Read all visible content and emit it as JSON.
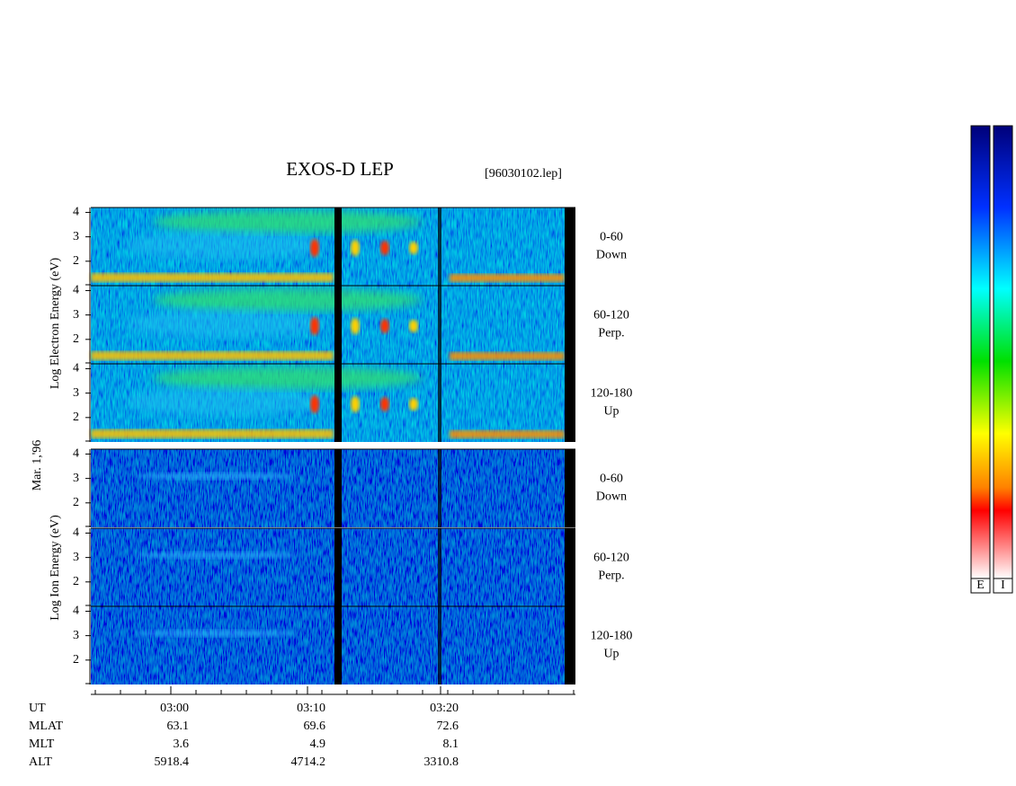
{
  "title": "EXOS-D LEP",
  "file": "[96030102.lep]",
  "electron_label": "Log Electron Energy (eV)",
  "ion_label": "Log Ion Energy (eV)",
  "date": "Mar. 1,'96",
  "panels": [
    {
      "range": "0-60",
      "direction": "Down",
      "ylim": [
        1,
        4.2
      ],
      "yticks": [
        2,
        3,
        4
      ]
    },
    {
      "range": "60-120",
      "direction": "Perp.",
      "ylim": [
        1,
        4.2
      ],
      "yticks": [
        2,
        3,
        4
      ]
    },
    {
      "range": "120-180",
      "direction": "Up",
      "ylim": [
        1,
        4.2
      ],
      "yticks": [
        2,
        3,
        4
      ]
    },
    {
      "range": "0-60",
      "direction": "Down",
      "ylim": [
        1,
        4.2
      ],
      "yticks": [
        2,
        3,
        4
      ]
    },
    {
      "range": "60-120",
      "direction": "Perp.",
      "ylim": [
        1,
        4.2
      ],
      "yticks": [
        2,
        3,
        4
      ]
    },
    {
      "range": "120-180",
      "direction": "Up",
      "ylim": [
        1,
        4.2
      ],
      "yticks": [
        2,
        3,
        4
      ]
    }
  ],
  "ephemeris": {
    "rows": [
      {
        "name": "UT",
        "values": [
          "03:00",
          "03:10",
          "03:20"
        ]
      },
      {
        "name": "MLAT",
        "values": [
          63.1,
          69.6,
          72.6
        ]
      },
      {
        "name": "MLT",
        "values": [
          3.6,
          4.9,
          8.1
        ]
      },
      {
        "name": "ALT",
        "values": [
          5918.4,
          4714.2,
          3310.8
        ]
      }
    ]
  },
  "colorbars": [
    "E",
    "I"
  ]
}
